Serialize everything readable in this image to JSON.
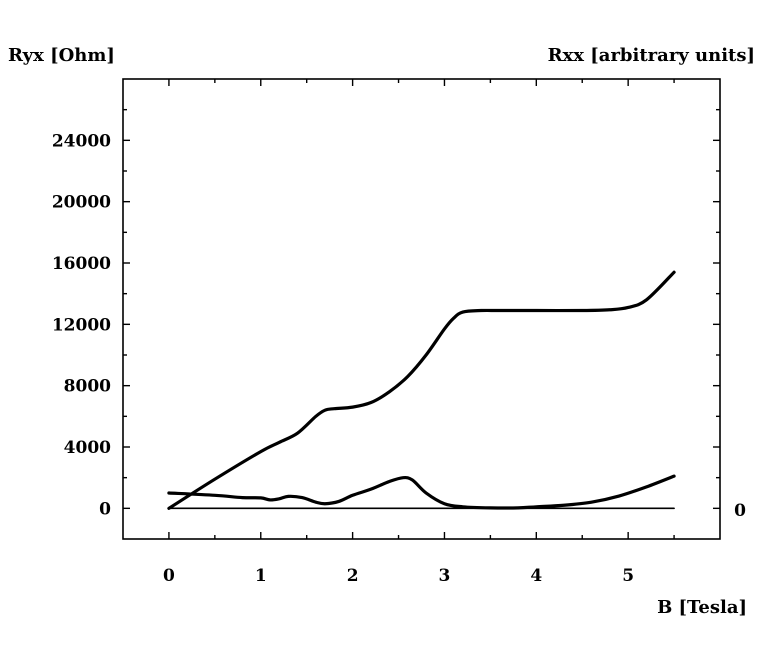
{
  "chart_data": {
    "type": "line",
    "title": "",
    "ylabel_left": "Ryx [Ohm]",
    "ylabel_right": "Rxx [arbitrary units]",
    "xlabel": "B [Tesla]",
    "xlim": [
      -0.5,
      6.0
    ],
    "ylim": [
      -2000,
      28000
    ],
    "x_ticks": [
      0,
      1,
      2,
      3,
      4,
      5
    ],
    "y_ticks": [
      0,
      4000,
      8000,
      12000,
      16000,
      20000,
      24000
    ],
    "x_tick_labels": [
      "0",
      "1",
      "2",
      "3",
      "4",
      "5"
    ],
    "y_tick_labels": [
      "0",
      "4000",
      "8000",
      "12000",
      "16000",
      "20000",
      "24000"
    ],
    "right_tick_label": "0",
    "grid": false,
    "legend": "none",
    "series": [
      {
        "x": [
          0,
          0.5,
          1.0,
          1.2,
          1.4,
          1.6,
          1.7,
          1.8,
          2.0,
          2.2,
          2.4,
          2.6,
          2.8,
          3.0,
          3.1,
          3.2,
          3.4,
          3.6,
          4.0,
          4.5,
          4.8,
          5.0,
          5.2,
          5.5
        ],
        "y": [
          0,
          1900,
          3700,
          4300,
          4900,
          6000,
          6400,
          6500,
          6600,
          6900,
          7600,
          8600,
          10000,
          11700,
          12400,
          12800,
          12900,
          12900,
          12900,
          12900,
          12950,
          13100,
          13600,
          15400
        ]
      },
      {
        "x": [
          0,
          0.5,
          0.8,
          1.0,
          1.1,
          1.2,
          1.3,
          1.45,
          1.6,
          1.7,
          1.85,
          2.0,
          2.2,
          2.4,
          2.55,
          2.65,
          2.8,
          3.0,
          3.2,
          3.5,
          3.8,
          4.0,
          4.3,
          4.6,
          4.9,
          5.2,
          5.5
        ],
        "y": [
          1000,
          850,
          700,
          680,
          550,
          620,
          780,
          700,
          400,
          300,
          450,
          850,
          1250,
          1750,
          2000,
          1850,
          1000,
          300,
          100,
          30,
          30,
          100,
          200,
          400,
          800,
          1400,
          2100
        ]
      },
      {
        "x": [
          0,
          5.5
        ],
        "y": [
          0,
          0
        ]
      }
    ]
  }
}
